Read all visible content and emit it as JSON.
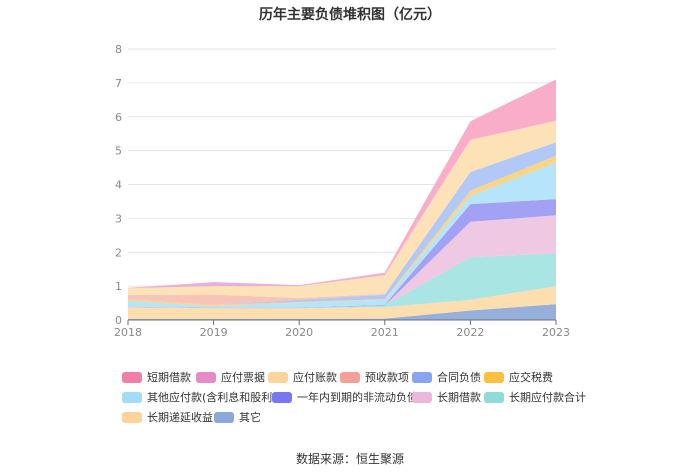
{
  "chart_data": {
    "type": "area",
    "stacked": true,
    "title": "历年主要负债堆积图（亿元）",
    "x": [
      "2018",
      "2019",
      "2020",
      "2021",
      "2022",
      "2023"
    ],
    "ylim": [
      0,
      8
    ],
    "yticks": [
      "0",
      "1",
      "2",
      "3",
      "4",
      "5",
      "6",
      "7",
      "8"
    ],
    "grid": true,
    "legend_position": "bottom",
    "series": [
      {
        "name": "其它",
        "color": "#91acd9",
        "values": [
          0.03,
          0.03,
          0.03,
          0.04,
          0.28,
          0.47
        ]
      },
      {
        "name": "长期递延收益",
        "color": "#fddcab",
        "values": [
          0.35,
          0.32,
          0.32,
          0.34,
          0.32,
          0.53
        ]
      },
      {
        "name": "长期应付款合计",
        "color": "#a3e4e1",
        "values": [
          0,
          0,
          0,
          0.05,
          1.25,
          0.97
        ]
      },
      {
        "name": "长期借款",
        "color": "#eec5e1",
        "values": [
          0,
          0,
          0,
          0,
          1.05,
          1.12
        ]
      },
      {
        "name": "一年内到期的非流动负债",
        "color": "#9e9cf2",
        "values": [
          0.01,
          0.01,
          0.01,
          0.02,
          0.52,
          0.48
        ]
      },
      {
        "name": "其他应付款(含利息和股利)",
        "color": "#b1e3fb",
        "values": [
          0.18,
          0.05,
          0.15,
          0.15,
          0.25,
          1.08
        ]
      },
      {
        "name": "应交税费",
        "color": "#fcd27b",
        "values": [
          0.05,
          0.04,
          0.02,
          0.02,
          0.15,
          0.2
        ]
      },
      {
        "name": "合同负债",
        "color": "#aec5f5",
        "values": [
          0,
          0,
          0.07,
          0.13,
          0.55,
          0.4
        ]
      },
      {
        "name": "预收款项",
        "color": "#f7c1b6",
        "values": [
          0.12,
          0.3,
          0.05,
          0.02,
          0,
          0
        ]
      },
      {
        "name": "应付账款",
        "color": "#fde0b4",
        "values": [
          0.2,
          0.25,
          0.35,
          0.55,
          0.95,
          0.63
        ]
      },
      {
        "name": "应付票据",
        "color": "#e9abd8",
        "values": [
          0,
          0.12,
          0.03,
          0.05,
          0,
          0
        ]
      },
      {
        "name": "短期借款",
        "color": "#f9a9c6",
        "values": [
          0.01,
          0,
          0,
          0.03,
          0.55,
          1.22
        ]
      }
    ],
    "legend_order": [
      "短期借款",
      "应付票据",
      "应付账款",
      "预收款项",
      "合同负债",
      "应交税费",
      "其他应付款(含利息和股利)",
      "一年内到期的非流动负债",
      "长期借款",
      "长期应付款合计",
      "长期递延收益",
      "其它"
    ],
    "legend_colors": {
      "短期借款": "#f17ea6",
      "应付票据": "#e68bc7",
      "应付账款": "#fcd49c",
      "预收款项": "#f4a096",
      "合同负债": "#89a5ef",
      "应交税费": "#fbc03e",
      "其他应付款(含利息和股利)": "#a3dcf8",
      "一年内到期的非流动负债": "#7876f0",
      "长期借款": "#ebb7dc",
      "长期应付款合计": "#8edcd8",
      "长期递延收益": "#fcd39a",
      "其它": "#8ba8d8"
    }
  },
  "footer": {
    "source": "数据来源：恒生聚源"
  }
}
